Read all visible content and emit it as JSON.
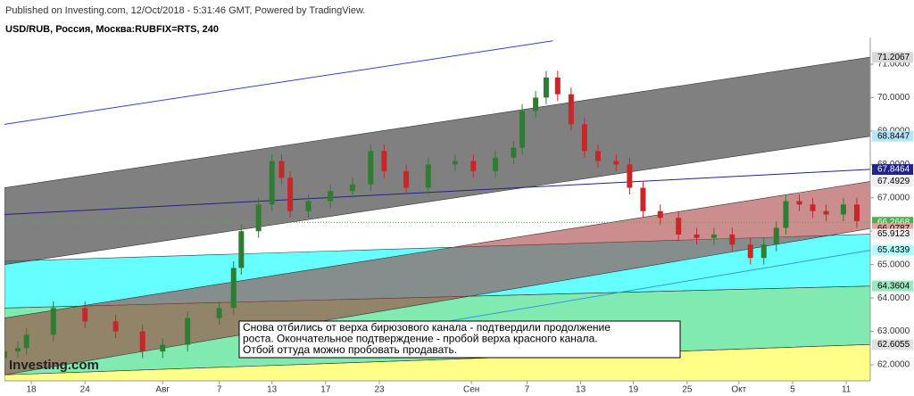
{
  "chart_data": {
    "type": "candlestick",
    "header": "Published on Investing.com, 12/Oct/2018 - 5:31:46 GMT, Powered by TradingView.",
    "title": "USD/RUB, Россия, Москва:RUBFIX=RTS, 240",
    "logo": "Investing.com",
    "annotation": [
      "Снова отбились от верха бирюзового канала - подтвердили продолжение",
      "роста. Окончательное подтверждение - пробой верха красного канала.",
      "Отбой оттуда можно пробовать продавать."
    ],
    "up_color": "#2e7d32",
    "down_color": "#c62828",
    "x": [
      -2.8,
      -1.4,
      -0.5,
      2.3,
      5.6,
      8.8,
      11.6,
      13.7,
      16.3,
      19.6,
      21.1,
      21.9,
      23.7,
      25.1,
      26.1,
      27.0,
      28.9,
      31.2,
      33.5,
      35.4,
      36.8,
      39.1,
      41.4,
      44.2,
      46.1,
      48.4,
      50.3,
      51.2,
      52.6,
      53.7,
      54.9,
      56.3,
      57.7,
      59.1,
      61.0,
      62.4,
      63.8,
      65.6,
      67.5,
      69.4,
      71.2,
      73.1,
      75.0,
      76.4,
      77.7,
      78.7,
      80.1,
      81.5,
      82.9,
      84.7,
      86.1
    ],
    "open": [
      62.2,
      62.4,
      62.5,
      62.9,
      63.7,
      63.3,
      63.0,
      62.4,
      62.6,
      63.4,
      63.7,
      64.9,
      66.0,
      66.8,
      68.1,
      67.6,
      66.6,
      66.9,
      67.2,
      67.4,
      68.4,
      67.8,
      67.3,
      68.0,
      68.1,
      67.8,
      68.2,
      68.5,
      69.6,
      70.0,
      70.6,
      70.1,
      69.2,
      68.4,
      68.1,
      68.0,
      67.3,
      66.6,
      66.4,
      65.9,
      65.8,
      65.9,
      65.6,
      65.2,
      65.6,
      66.1,
      66.9,
      66.8,
      66.6,
      66.5,
      66.8
    ],
    "high": [
      62.6,
      62.7,
      63.1,
      63.9,
      63.9,
      63.5,
      63.2,
      62.8,
      63.6,
      63.9,
      65.1,
      66.2,
      67.0,
      68.3,
      68.3,
      67.8,
      67.1,
      67.4,
      67.6,
      68.6,
      68.6,
      68.0,
      68.2,
      68.3,
      68.3,
      68.4,
      68.7,
      69.8,
      70.2,
      70.8,
      70.8,
      70.3,
      69.4,
      68.6,
      68.3,
      68.2,
      67.5,
      66.8,
      66.6,
      66.1,
      66.1,
      66.1,
      65.8,
      65.8,
      66.3,
      67.1,
      67.1,
      67.0,
      66.8,
      67.0,
      67.0
    ],
    "low": [
      62.0,
      62.2,
      62.3,
      62.7,
      63.1,
      62.8,
      62.2,
      62.2,
      62.4,
      63.2,
      63.5,
      64.7,
      65.8,
      66.6,
      67.4,
      66.4,
      66.4,
      66.7,
      67.0,
      67.2,
      67.6,
      67.1,
      67.1,
      67.8,
      67.6,
      67.6,
      68.0,
      68.3,
      69.4,
      69.8,
      69.9,
      69.0,
      68.2,
      67.9,
      67.8,
      67.1,
      66.4,
      66.2,
      65.7,
      65.6,
      65.6,
      65.4,
      65.0,
      65.0,
      65.4,
      65.9,
      66.6,
      66.4,
      66.3,
      66.3,
      66.1
    ],
    "close": [
      62.4,
      62.5,
      62.9,
      63.7,
      63.3,
      63.0,
      62.4,
      62.6,
      63.4,
      63.7,
      64.9,
      66.0,
      66.8,
      68.1,
      67.6,
      66.6,
      66.9,
      67.2,
      67.4,
      68.4,
      67.8,
      67.3,
      68.0,
      68.1,
      67.8,
      68.2,
      68.5,
      69.6,
      70.0,
      70.6,
      70.1,
      69.2,
      68.4,
      68.1,
      68.0,
      67.3,
      66.6,
      66.4,
      65.9,
      65.8,
      65.9,
      65.6,
      65.2,
      65.6,
      66.1,
      66.9,
      66.8,
      66.6,
      66.5,
      66.8,
      66.3
    ],
    "xlim": [
      -2.8,
      87.5
    ],
    "ylim": [
      61.52,
      71.8
    ],
    "xticks": [
      {
        "value": 0,
        "label": "18"
      },
      {
        "value": 5.6,
        "label": "24"
      },
      {
        "value": 13.7,
        "label": "Авг"
      },
      {
        "value": 19.6,
        "label": "7"
      },
      {
        "value": 25.1,
        "label": "13"
      },
      {
        "value": 30.7,
        "label": "17"
      },
      {
        "value": 36.3,
        "label": "23"
      },
      {
        "value": 45.9,
        "label": "Сен"
      },
      {
        "value": 51.7,
        "label": "7"
      },
      {
        "value": 57.3,
        "label": "13"
      },
      {
        "value": 62.8,
        "label": "19"
      },
      {
        "value": 68.4,
        "label": "25"
      },
      {
        "value": 73.8,
        "label": "Окт"
      },
      {
        "value": 79.4,
        "label": "5"
      },
      {
        "value": 85,
        "label": "11"
      }
    ],
    "yticks": [
      {
        "value": 62,
        "label": "62.0000"
      },
      {
        "value": 63,
        "label": "63.0000"
      },
      {
        "value": 64,
        "label": "64.0000"
      },
      {
        "value": 65,
        "label": "65.0000"
      },
      {
        "value": 66,
        "label": "66.0000"
      },
      {
        "value": 67,
        "label": "67.0000"
      },
      {
        "value": 68,
        "label": "68.0000"
      },
      {
        "value": 69,
        "label": "69.0000"
      },
      {
        "value": 70,
        "label": "70.0000"
      },
      {
        "value": 71,
        "label": "71.0000"
      }
    ],
    "grid": false,
    "bands": [
      {
        "color": "#ffff88",
        "opacity": 1,
        "upper": [
          [
            -2.8,
            61.7
          ],
          [
            87.5,
            62.61
          ]
        ],
        "lower": [
          [
            -2.8,
            61.52
          ],
          [
            87.5,
            61.52
          ]
        ]
      },
      {
        "color": "#80eab0",
        "opacity": 1,
        "upper": [
          [
            -2.8,
            63.7
          ],
          [
            87.5,
            64.36
          ]
        ],
        "lower": [
          [
            -2.8,
            61.7
          ],
          [
            87.5,
            62.61
          ]
        ]
      },
      {
        "color": "#66ffff",
        "opacity": 1,
        "upper": [
          [
            -2.8,
            65.1
          ],
          [
            87.5,
            65.91
          ]
        ],
        "lower": [
          [
            -2.8,
            63.7
          ],
          [
            87.5,
            64.36
          ]
        ]
      },
      {
        "color": "#a03030",
        "opacity": 0.55,
        "upper": [
          [
            -2.8,
            63.4
          ],
          [
            87.5,
            67.49
          ]
        ],
        "lower": [
          [
            -2.8,
            61.7
          ],
          [
            87.5,
            66.08
          ]
        ]
      },
      {
        "color": "#555555",
        "opacity": 0.75,
        "upper": [
          [
            -2.8,
            67.3
          ],
          [
            87.5,
            71.21
          ]
        ],
        "lower": [
          [
            -2.8,
            65.0
          ],
          [
            87.5,
            68.84
          ]
        ]
      }
    ],
    "trendlines": [
      {
        "color": "#3344cc",
        "points": [
          [
            -2.8,
            69.2
          ],
          [
            54.4,
            71.7
          ]
        ]
      },
      {
        "color": "#22228a",
        "points": [
          [
            -2.8,
            66.5
          ],
          [
            87.5,
            67.85
          ]
        ]
      },
      {
        "color": "#3399dd",
        "points": [
          [
            24.7,
            62.4
          ],
          [
            87.5,
            65.43
          ]
        ]
      }
    ],
    "hline": {
      "value": 66.2668,
      "color": "#4caf50"
    },
    "price_labels": [
      {
        "value": 71.2067,
        "label": "71.2067",
        "bg": "#d9d9d9",
        "fg": "#000"
      },
      {
        "value": 68.8447,
        "label": "68.8447",
        "bg": "#b3e5fc",
        "fg": "#000"
      },
      {
        "value": 67.8464,
        "label": "67.8464",
        "bg": "#22228a",
        "fg": "#fff"
      },
      {
        "value": 67.4929,
        "label": "67.4929",
        "bg": "#eeeeee",
        "fg": "#000"
      },
      {
        "value": 66.2668,
        "label": "66.2668",
        "bg": "#4caf50",
        "fg": "#fff"
      },
      {
        "value": 66.0787,
        "label": "66.0787",
        "bg": "#e8a0a0",
        "fg": "#000"
      },
      {
        "value": 65.9123,
        "label": "65.9123",
        "bg": "#eeeeee",
        "fg": "#000"
      },
      {
        "value": 65.4339,
        "label": "65.4339",
        "bg": "#b2ffff",
        "fg": "#000"
      },
      {
        "value": 64.3604,
        "label": "64.3604",
        "bg": "#9be7c0",
        "fg": "#000"
      },
      {
        "value": 62.6055,
        "label": "62.6055",
        "bg": "#e0e0e0",
        "fg": "#000"
      }
    ]
  }
}
